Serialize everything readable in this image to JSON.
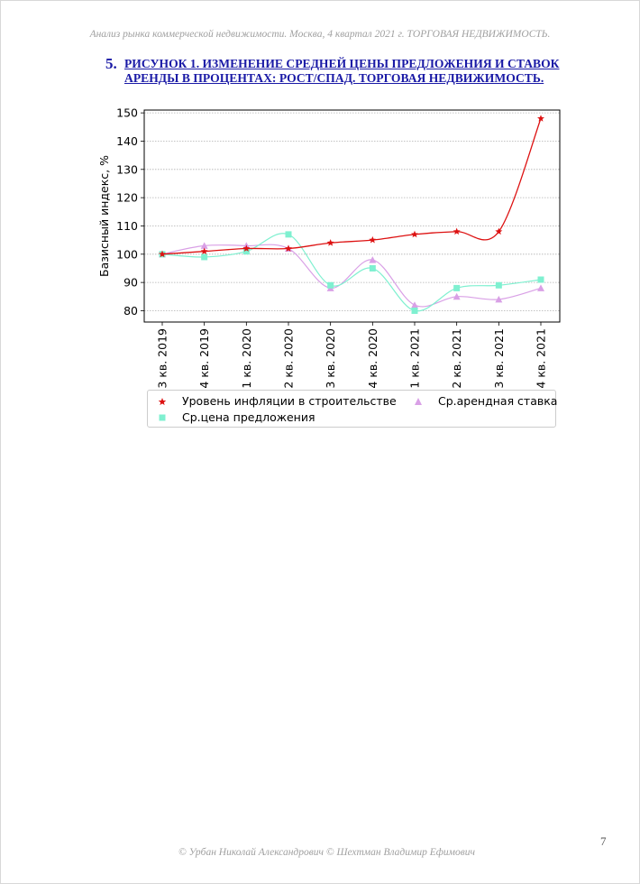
{
  "header": {
    "text": "Анализ рынка коммерческой недвижимости.  Москва,  4 квартал 2021 г.   ТОРГОВАЯ НЕДВИЖИМОСТЬ."
  },
  "heading": {
    "number": "5.",
    "title": "РИСУНОК 1. ИЗМЕНЕНИЕ СРЕДНЕЙ ЦЕНЫ ПРЕДЛОЖЕНИЯ И СТАВОК АРЕНДЫ В ПРОЦЕНТАХ: РОСТ/СПАД. ТОРГОВАЯ НЕДВИЖИМОСТЬ."
  },
  "chart_data": {
    "type": "line",
    "ylabel": "Базисный индекс, %",
    "xlabel": "",
    "ylim": [
      76,
      151
    ],
    "yticks": [
      80,
      90,
      100,
      110,
      120,
      130,
      140,
      150
    ],
    "grid": "horizontal",
    "legend_position": "below",
    "categories": [
      "3 кв. 2019",
      "4 кв. 2019",
      "1 кв. 2020",
      "2 кв. 2020",
      "3 кв. 2020",
      "4 кв. 2020",
      "1 кв. 2021",
      "2 кв. 2021",
      "3 кв. 2021",
      "4 кв. 2021"
    ],
    "series": [
      {
        "name": "Уровень инфляции в строительстве",
        "marker": "star",
        "color": "#dd1111",
        "values": [
          100,
          101,
          102,
          102,
          104,
          105,
          107,
          108,
          108,
          148
        ]
      },
      {
        "name": "Ср.цена предложения",
        "marker": "square",
        "color": "#7ff0d0",
        "values": [
          100,
          99,
          101,
          107,
          89,
          95,
          80,
          88,
          89,
          91
        ]
      },
      {
        "name": "Ср.арендная ставка",
        "marker": "triangle",
        "color": "#d9a0e6",
        "values": [
          100,
          103,
          103,
          102,
          88,
          98,
          82,
          85,
          84,
          88
        ]
      }
    ]
  },
  "footer": {
    "text": "© Урбан Николай Александрович   © Шехтман Владимир Ефимович"
  },
  "page_number": "7"
}
